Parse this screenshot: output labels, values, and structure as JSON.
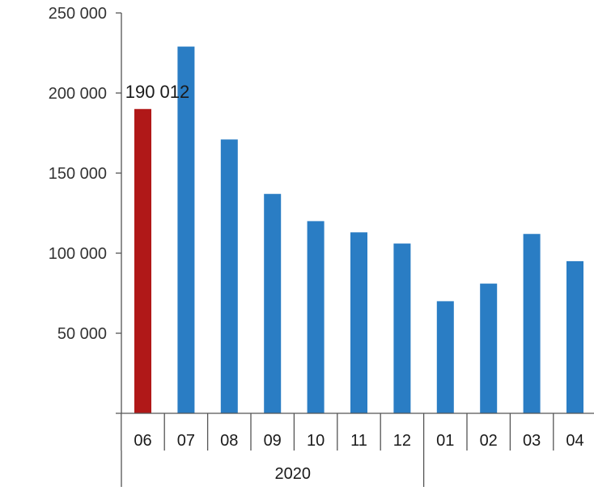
{
  "chart_data": {
    "type": "bar",
    "categories": [
      "06",
      "07",
      "08",
      "09",
      "10",
      "11",
      "12",
      "01",
      "02",
      "03",
      "04"
    ],
    "groups": [
      {
        "label": "2020",
        "start": 0,
        "end": 6
      },
      {
        "label": "",
        "start": 7,
        "end": 10
      }
    ],
    "series": [
      {
        "values": [
          190012,
          229000,
          171000,
          137000,
          120000,
          113000,
          106000,
          70000,
          81000,
          112000,
          95000
        ],
        "color": "#2a7dc4"
      }
    ],
    "highlight": {
      "index": 0,
      "color": "#b01818"
    },
    "data_labels": [
      {
        "index": 0,
        "text": "190 012"
      }
    ],
    "ylim": [
      0,
      250000
    ],
    "yticks": [
      {
        "value": 50000,
        "label": "50 000"
      },
      {
        "value": 100000,
        "label": "100 000"
      },
      {
        "value": 150000,
        "label": "150 000"
      },
      {
        "value": 200000,
        "label": "200 000"
      },
      {
        "value": 250000,
        "label": "250 000"
      }
    ],
    "title": "",
    "xlabel": "",
    "ylabel": "",
    "grid": false,
    "legend": "none"
  }
}
